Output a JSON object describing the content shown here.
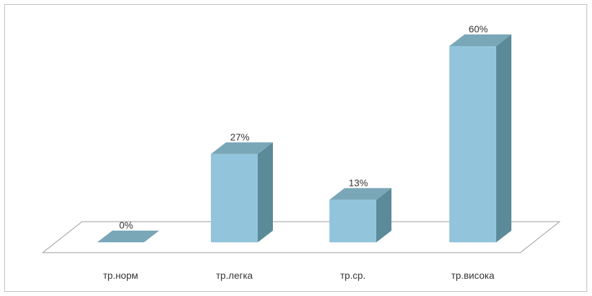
{
  "chart_data": {
    "type": "bar",
    "style": "3d-column",
    "categories": [
      "тр.норм",
      "тр.легка",
      "тр.ср.",
      "тр.висока"
    ],
    "values": [
      0,
      27,
      13,
      60
    ],
    "data_labels": [
      "0%",
      "27%",
      "13%",
      "60%"
    ],
    "unit": "%",
    "title": "",
    "xlabel": "",
    "ylabel": "",
    "ylim": [
      0,
      60
    ],
    "grid": false,
    "legend": "none",
    "colors": {
      "front": "#92c5dc",
      "side": "#5b8a99",
      "top": "#7aa7b8",
      "floor_stroke": "#999999",
      "frame": "#bfbfbf"
    }
  }
}
